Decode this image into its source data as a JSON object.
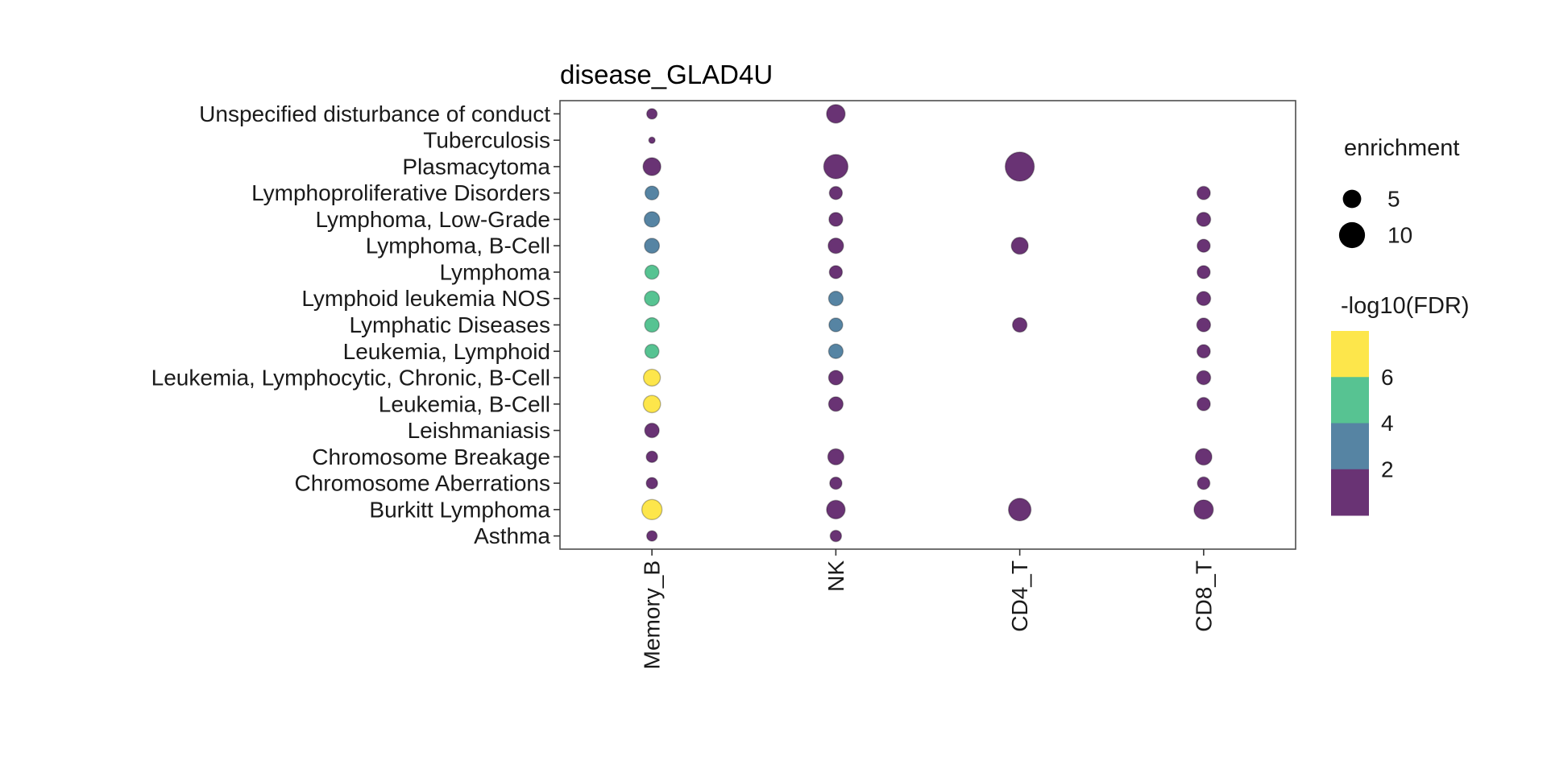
{
  "chart_data": {
    "type": "scatter",
    "title": "disease_GLAD4U",
    "x_categories": [
      "Memory_B",
      "NK",
      "CD4_T",
      "CD8_T"
    ],
    "y_categories": [
      "Unspecified disturbance of conduct",
      "Tuberculosis",
      "Plasmacytoma",
      "Lymphoproliferative Disorders",
      "Lymphoma, Low-Grade",
      "Lymphoma, B-Cell",
      "Lymphoma",
      "Lymphoid leukemia NOS",
      "Lymphatic Diseases",
      "Leukemia, Lymphoid",
      "Leukemia, Lymphocytic, Chronic, B-Cell",
      "Leukemia, B-Cell",
      "Leishmaniasis",
      "Chromosome Breakage",
      "Chromosome Aberrations",
      "Burkitt Lymphoma",
      "Asthma"
    ],
    "points": [
      {
        "cell": "Memory_B",
        "disease": "Unspecified disturbance of conduct",
        "enrichment": 1.6,
        "neg_log10_fdr": 1.3
      },
      {
        "cell": "Memory_B",
        "disease": "Tuberculosis",
        "enrichment": 0.6,
        "neg_log10_fdr": 1.3
      },
      {
        "cell": "Memory_B",
        "disease": "Plasmacytoma",
        "enrichment": 4.7,
        "neg_log10_fdr": 1.3
      },
      {
        "cell": "Memory_B",
        "disease": "Lymphoproliferative Disorders",
        "enrichment": 2.8,
        "neg_log10_fdr": 3.0
      },
      {
        "cell": "Memory_B",
        "disease": "Lymphoma, Low-Grade",
        "enrichment": 3.5,
        "neg_log10_fdr": 3.0
      },
      {
        "cell": "Memory_B",
        "disease": "Lymphoma, B-Cell",
        "enrichment": 3.3,
        "neg_log10_fdr": 3.0
      },
      {
        "cell": "Memory_B",
        "disease": "Lymphoma",
        "enrichment": 2.9,
        "neg_log10_fdr": 5.0
      },
      {
        "cell": "Memory_B",
        "disease": "Lymphoid leukemia NOS",
        "enrichment": 3.3,
        "neg_log10_fdr": 5.0
      },
      {
        "cell": "Memory_B",
        "disease": "Lymphatic Diseases",
        "enrichment": 3.1,
        "neg_log10_fdr": 5.0
      },
      {
        "cell": "Memory_B",
        "disease": "Leukemia, Lymphoid",
        "enrichment": 2.9,
        "neg_log10_fdr": 5.0
      },
      {
        "cell": "Memory_B",
        "disease": "Leukemia, Lymphocytic, Chronic, B-Cell",
        "enrichment": 4.2,
        "neg_log10_fdr": 7.0
      },
      {
        "cell": "Memory_B",
        "disease": "Leukemia, B-Cell",
        "enrichment": 4.4,
        "neg_log10_fdr": 7.0
      },
      {
        "cell": "Memory_B",
        "disease": "Leishmaniasis",
        "enrichment": 3.1,
        "neg_log10_fdr": 1.3
      },
      {
        "cell": "Memory_B",
        "disease": "Chromosome Breakage",
        "enrichment": 1.9,
        "neg_log10_fdr": 1.3
      },
      {
        "cell": "Memory_B",
        "disease": "Chromosome Aberrations",
        "enrichment": 1.9,
        "neg_log10_fdr": 1.3
      },
      {
        "cell": "Memory_B",
        "disease": "Burkitt Lymphoma",
        "enrichment": 6.0,
        "neg_log10_fdr": 7.0
      },
      {
        "cell": "Memory_B",
        "disease": "Asthma",
        "enrichment": 1.6,
        "neg_log10_fdr": 1.3
      },
      {
        "cell": "NK",
        "disease": "Unspecified disturbance of conduct",
        "enrichment": 5.1,
        "neg_log10_fdr": 1.3
      },
      {
        "cell": "NK",
        "disease": "Plasmacytoma",
        "enrichment": 8.7,
        "neg_log10_fdr": 1.3
      },
      {
        "cell": "NK",
        "disease": "Lymphoproliferative Disorders",
        "enrichment": 2.5,
        "neg_log10_fdr": 1.3
      },
      {
        "cell": "NK",
        "disease": "Lymphoma, Low-Grade",
        "enrichment": 2.8,
        "neg_log10_fdr": 1.3
      },
      {
        "cell": "NK",
        "disease": "Lymphoma, B-Cell",
        "enrichment": 3.5,
        "neg_log10_fdr": 1.3
      },
      {
        "cell": "NK",
        "disease": "Lymphoma",
        "enrichment": 2.5,
        "neg_log10_fdr": 1.3
      },
      {
        "cell": "NK",
        "disease": "Lymphoid leukemia NOS",
        "enrichment": 3.1,
        "neg_log10_fdr": 3.0
      },
      {
        "cell": "NK",
        "disease": "Lymphatic Diseases",
        "enrichment": 2.8,
        "neg_log10_fdr": 3.0
      },
      {
        "cell": "NK",
        "disease": "Leukemia, Lymphoid",
        "enrichment": 3.1,
        "neg_log10_fdr": 3.0
      },
      {
        "cell": "NK",
        "disease": "Leukemia, Lymphocytic, Chronic, B-Cell",
        "enrichment": 3.1,
        "neg_log10_fdr": 1.3
      },
      {
        "cell": "NK",
        "disease": "Leukemia, B-Cell",
        "enrichment": 3.1,
        "neg_log10_fdr": 1.3
      },
      {
        "cell": "NK",
        "disease": "Chromosome Breakage",
        "enrichment": 3.8,
        "neg_log10_fdr": 1.3
      },
      {
        "cell": "NK",
        "disease": "Chromosome Aberrations",
        "enrichment": 2.2,
        "neg_log10_fdr": 1.3
      },
      {
        "cell": "NK",
        "disease": "Burkitt Lymphoma",
        "enrichment": 5.1,
        "neg_log10_fdr": 1.3
      },
      {
        "cell": "NK",
        "disease": "Asthma",
        "enrichment": 1.9,
        "neg_log10_fdr": 1.3
      },
      {
        "cell": "CD4_T",
        "disease": "Plasmacytoma",
        "enrichment": 12.5,
        "neg_log10_fdr": 1.3
      },
      {
        "cell": "CD4_T",
        "disease": "Lymphoma, B-Cell",
        "enrichment": 4.2,
        "neg_log10_fdr": 1.3
      },
      {
        "cell": "CD4_T",
        "disease": "Lymphatic Diseases",
        "enrichment": 3.1,
        "neg_log10_fdr": 1.3
      },
      {
        "cell": "CD4_T",
        "disease": "Burkitt Lymphoma",
        "enrichment": 7.5,
        "neg_log10_fdr": 1.3
      },
      {
        "cell": "CD8_T",
        "disease": "Lymphoproliferative Disorders",
        "enrichment": 2.6,
        "neg_log10_fdr": 1.3
      },
      {
        "cell": "CD8_T",
        "disease": "Lymphoma, Low-Grade",
        "enrichment": 2.9,
        "neg_log10_fdr": 1.3
      },
      {
        "cell": "CD8_T",
        "disease": "Lymphoma, B-Cell",
        "enrichment": 2.5,
        "neg_log10_fdr": 1.3
      },
      {
        "cell": "CD8_T",
        "disease": "Lymphoma",
        "enrichment": 2.5,
        "neg_log10_fdr": 1.3
      },
      {
        "cell": "CD8_T",
        "disease": "Lymphoid leukemia NOS",
        "enrichment": 2.9,
        "neg_log10_fdr": 1.3
      },
      {
        "cell": "CD8_T",
        "disease": "Lymphatic Diseases",
        "enrichment": 2.8,
        "neg_log10_fdr": 1.3
      },
      {
        "cell": "CD8_T",
        "disease": "Leukemia, Lymphoid",
        "enrichment": 2.6,
        "neg_log10_fdr": 1.3
      },
      {
        "cell": "CD8_T",
        "disease": "Leukemia, Lymphocytic, Chronic, B-Cell",
        "enrichment": 2.9,
        "neg_log10_fdr": 1.3
      },
      {
        "cell": "CD8_T",
        "disease": "Leukemia, B-Cell",
        "enrichment": 2.6,
        "neg_log10_fdr": 1.3
      },
      {
        "cell": "CD8_T",
        "disease": "Chromosome Breakage",
        "enrichment": 4.0,
        "neg_log10_fdr": 1.3
      },
      {
        "cell": "CD8_T",
        "disease": "Chromosome Aberrations",
        "enrichment": 2.3,
        "neg_log10_fdr": 1.3
      },
      {
        "cell": "CD8_T",
        "disease": "Burkitt Lymphoma",
        "enrichment": 5.5,
        "neg_log10_fdr": 1.3
      }
    ],
    "legend": {
      "size": {
        "title": "enrichment",
        "values": [
          5,
          10
        ]
      },
      "color": {
        "title": "-log10(FDR)",
        "tick_labels": [
          6,
          4,
          2
        ],
        "bins": [
          {
            "upper": 2,
            "color": "#693374"
          },
          {
            "upper": 4,
            "color": "#5684A3"
          },
          {
            "upper": 6,
            "color": "#57C392"
          },
          {
            "upper": 99,
            "color": "#FDE64B"
          }
        ]
      }
    },
    "layout_hints": {
      "grid": false,
      "legend_position": "right",
      "x_label_rotation": 90,
      "panel_border": true,
      "background": "#ffffff"
    }
  }
}
